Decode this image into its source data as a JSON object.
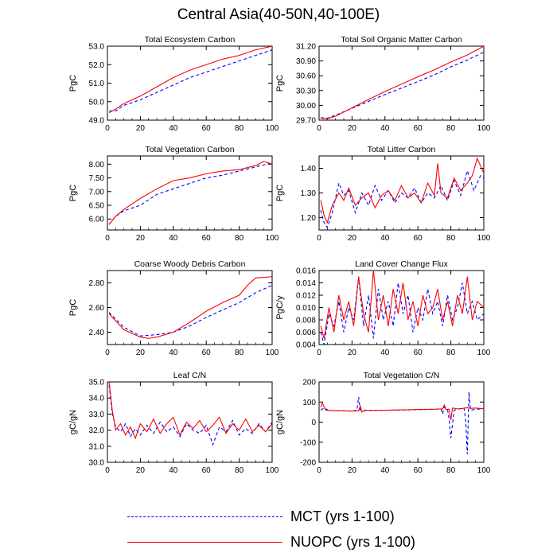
{
  "figure": {
    "title": "Central Asia(40-50N,40-100E)",
    "colors": {
      "mct": "#0000ff",
      "nuopc": "#ff0000"
    }
  },
  "legend": {
    "mct_label": "MCT (yrs 1-100)",
    "nuopc_label": "NUOPC (yrs 1-100)"
  },
  "chart_data": [
    {
      "type": "line",
      "title": "Total Ecosystem Carbon",
      "ylabel": "PgC",
      "xlim": [
        0,
        100
      ],
      "ylim": [
        49.0,
        53.0
      ],
      "xticks": [
        0,
        20,
        40,
        60,
        80,
        100
      ],
      "xtick_labels": [
        "0",
        "20",
        "40",
        "60",
        "80",
        "100"
      ],
      "yticks": [
        49.0,
        50.0,
        51.0,
        52.0,
        53.0
      ],
      "ytick_labels": [
        "49.0",
        "50.0",
        "51.0",
        "52.0",
        "53.0"
      ],
      "series": [
        {
          "name": "MCT (yrs 1-100)",
          "style": "dashed",
          "color": "#0000ff",
          "x": [
            1,
            5,
            10,
            20,
            30,
            40,
            50,
            60,
            70,
            80,
            90,
            100
          ],
          "values": [
            49.5,
            49.5,
            49.8,
            50.1,
            50.5,
            50.9,
            51.3,
            51.6,
            51.9,
            52.2,
            52.5,
            52.8
          ]
        },
        {
          "name": "NUOPC (yrs 1-100)",
          "style": "solid",
          "color": "#ff0000",
          "x": [
            1,
            5,
            10,
            20,
            30,
            40,
            50,
            60,
            70,
            80,
            90,
            100
          ],
          "values": [
            49.4,
            49.6,
            49.9,
            50.3,
            50.8,
            51.3,
            51.7,
            52.0,
            52.3,
            52.5,
            52.8,
            53.0
          ]
        }
      ]
    },
    {
      "type": "line",
      "title": "Total Soil Organic Matter Carbon",
      "ylabel": "PgC",
      "xlim": [
        0,
        100
      ],
      "ylim": [
        29.7,
        31.2
      ],
      "xticks": [
        0,
        20,
        40,
        60,
        80,
        100
      ],
      "xtick_labels": [
        "0",
        "20",
        "40",
        "60",
        "80",
        "100"
      ],
      "yticks": [
        29.7,
        30.0,
        30.3,
        30.6,
        30.9,
        31.2
      ],
      "ytick_labels": [
        "29.70",
        "30.00",
        "30.30",
        "30.60",
        "30.90",
        "31.20"
      ],
      "series": [
        {
          "name": "MCT (yrs 1-100)",
          "style": "dashed",
          "color": "#0000ff",
          "x": [
            1,
            5,
            10,
            20,
            30,
            40,
            50,
            60,
            70,
            80,
            90,
            100
          ],
          "values": [
            29.75,
            29.74,
            29.8,
            29.94,
            30.08,
            30.22,
            30.35,
            30.48,
            30.62,
            30.78,
            30.92,
            31.08
          ]
        },
        {
          "name": "NUOPC (yrs 1-100)",
          "style": "solid",
          "color": "#ff0000",
          "x": [
            1,
            5,
            10,
            20,
            30,
            40,
            50,
            60,
            70,
            80,
            90,
            100
          ],
          "values": [
            29.74,
            29.73,
            29.78,
            29.95,
            30.12,
            30.28,
            30.43,
            30.58,
            30.72,
            30.88,
            31.02,
            31.2
          ]
        }
      ]
    },
    {
      "type": "line",
      "title": "Total Vegetation Carbon",
      "ylabel": "PgC",
      "xlim": [
        0,
        100
      ],
      "ylim": [
        5.6,
        8.3
      ],
      "xticks": [
        0,
        20,
        40,
        60,
        80,
        100
      ],
      "xtick_labels": [
        "0",
        "20",
        "40",
        "60",
        "80",
        "100"
      ],
      "yticks": [
        6.0,
        6.5,
        7.0,
        7.5,
        8.0
      ],
      "ytick_labels": [
        "6.00",
        "6.50",
        "7.00",
        "7.50",
        "8.00"
      ],
      "series": [
        {
          "name": "MCT (yrs 1-100)",
          "style": "dashed",
          "color": "#0000ff",
          "x": [
            1,
            5,
            10,
            20,
            30,
            40,
            50,
            60,
            70,
            80,
            90,
            100
          ],
          "values": [
            5.8,
            6.1,
            6.3,
            6.5,
            6.9,
            7.1,
            7.3,
            7.5,
            7.6,
            7.75,
            7.9,
            8.05
          ]
        },
        {
          "name": "NUOPC (yrs 1-100)",
          "style": "solid",
          "color": "#ff0000",
          "x": [
            1,
            5,
            10,
            20,
            30,
            40,
            50,
            60,
            70,
            80,
            90,
            95,
            100
          ],
          "values": [
            5.8,
            6.1,
            6.35,
            6.75,
            7.1,
            7.4,
            7.5,
            7.65,
            7.75,
            7.8,
            7.95,
            8.1,
            8.0
          ]
        }
      ]
    },
    {
      "type": "line",
      "title": "Total Litter Carbon",
      "ylabel": "PgC",
      "xlim": [
        0,
        100
      ],
      "ylim": [
        1.15,
        1.45
      ],
      "xticks": [
        0,
        20,
        40,
        60,
        80,
        100
      ],
      "xtick_labels": [
        "0",
        "20",
        "40",
        "60",
        "80",
        "100"
      ],
      "yticks": [
        1.2,
        1.3,
        1.4
      ],
      "ytick_labels": [
        "1.20",
        "1.30",
        "1.40"
      ],
      "series": [
        {
          "name": "MCT (yrs 1-100)",
          "style": "dashed",
          "color": "#0000ff",
          "x": [
            1,
            3,
            5,
            8,
            12,
            15,
            18,
            22,
            26,
            30,
            34,
            38,
            42,
            46,
            50,
            54,
            58,
            62,
            66,
            70,
            74,
            78,
            82,
            86,
            90,
            94,
            98,
            100
          ],
          "values": [
            1.23,
            1.18,
            1.16,
            1.22,
            1.34,
            1.29,
            1.31,
            1.22,
            1.3,
            1.25,
            1.33,
            1.27,
            1.31,
            1.26,
            1.3,
            1.28,
            1.32,
            1.26,
            1.3,
            1.28,
            1.33,
            1.27,
            1.35,
            1.29,
            1.39,
            1.31,
            1.37,
            1.36
          ]
        },
        {
          "name": "NUOPC (yrs 1-100)",
          "style": "solid",
          "color": "#ff0000",
          "x": [
            1,
            3,
            5,
            8,
            12,
            15,
            18,
            22,
            26,
            30,
            34,
            38,
            42,
            46,
            50,
            54,
            58,
            62,
            66,
            70,
            72,
            74,
            78,
            82,
            86,
            90,
            93,
            96,
            100
          ],
          "values": [
            1.27,
            1.21,
            1.18,
            1.25,
            1.3,
            1.27,
            1.32,
            1.25,
            1.28,
            1.3,
            1.24,
            1.29,
            1.31,
            1.27,
            1.33,
            1.28,
            1.3,
            1.26,
            1.34,
            1.29,
            1.42,
            1.3,
            1.28,
            1.36,
            1.31,
            1.34,
            1.37,
            1.44,
            1.38
          ]
        }
      ]
    },
    {
      "type": "line",
      "title": "Coarse Woody Debris Carbon",
      "ylabel": "PgC",
      "xlim": [
        0,
        100
      ],
      "ylim": [
        2.3,
        2.9
      ],
      "xticks": [
        0,
        20,
        40,
        60,
        80,
        100
      ],
      "xtick_labels": [
        "0",
        "20",
        "40",
        "60",
        "80",
        "100"
      ],
      "yticks": [
        2.4,
        2.6,
        2.8
      ],
      "ytick_labels": [
        "2.40",
        "2.60",
        "2.80"
      ],
      "series": [
        {
          "name": "MCT (yrs 1-100)",
          "style": "dashed",
          "color": "#0000ff",
          "x": [
            1,
            10,
            20,
            30,
            40,
            50,
            60,
            70,
            80,
            90,
            100
          ],
          "values": [
            2.56,
            2.44,
            2.37,
            2.38,
            2.4,
            2.45,
            2.52,
            2.58,
            2.64,
            2.72,
            2.78
          ]
        },
        {
          "name": "NUOPC (yrs 1-100)",
          "style": "solid",
          "color": "#ff0000",
          "x": [
            1,
            10,
            20,
            25,
            30,
            40,
            50,
            60,
            70,
            80,
            85,
            90,
            100
          ],
          "values": [
            2.55,
            2.42,
            2.36,
            2.35,
            2.36,
            2.4,
            2.48,
            2.57,
            2.64,
            2.7,
            2.78,
            2.84,
            2.85
          ]
        }
      ]
    },
    {
      "type": "line",
      "title": "Land Cover Change Flux",
      "ylabel": "PgC/y",
      "xlim": [
        0,
        100
      ],
      "ylim": [
        0.004,
        0.016
      ],
      "xticks": [
        0,
        20,
        40,
        60,
        80,
        100
      ],
      "xtick_labels": [
        "0",
        "20",
        "40",
        "60",
        "80",
        "100"
      ],
      "yticks": [
        0.004,
        0.006,
        0.008,
        0.01,
        0.012,
        0.014,
        0.016
      ],
      "ytick_labels": [
        "0.004",
        "0.006",
        "0.008",
        "0.010",
        "0.012",
        "0.014",
        "0.016"
      ],
      "series": [
        {
          "name": "MCT (yrs 1-100)",
          "style": "dashed",
          "color": "#0000ff",
          "x": [
            1,
            3,
            6,
            9,
            12,
            15,
            18,
            21,
            24,
            27,
            30,
            33,
            36,
            39,
            42,
            45,
            48,
            51,
            54,
            57,
            60,
            63,
            66,
            69,
            72,
            75,
            78,
            81,
            84,
            87,
            90,
            93,
            96,
            100
          ],
          "values": [
            0.006,
            0.004,
            0.009,
            0.007,
            0.011,
            0.006,
            0.01,
            0.008,
            0.015,
            0.007,
            0.012,
            0.005,
            0.013,
            0.008,
            0.011,
            0.007,
            0.014,
            0.009,
            0.012,
            0.006,
            0.01,
            0.008,
            0.013,
            0.009,
            0.011,
            0.007,
            0.012,
            0.008,
            0.01,
            0.014,
            0.009,
            0.011,
            0.008,
            0.009
          ]
        },
        {
          "name": "NUOPC (yrs 1-100)",
          "style": "solid",
          "color": "#ff0000",
          "x": [
            1,
            3,
            6,
            9,
            12,
            15,
            18,
            21,
            24,
            27,
            30,
            33,
            36,
            39,
            42,
            45,
            48,
            51,
            54,
            57,
            60,
            63,
            66,
            69,
            72,
            75,
            78,
            81,
            84,
            87,
            90,
            93,
            96,
            100
          ],
          "values": [
            0.007,
            0.005,
            0.01,
            0.006,
            0.012,
            0.008,
            0.011,
            0.007,
            0.015,
            0.009,
            0.006,
            0.016,
            0.008,
            0.012,
            0.007,
            0.013,
            0.009,
            0.014,
            0.008,
            0.011,
            0.007,
            0.012,
            0.009,
            0.01,
            0.013,
            0.008,
            0.011,
            0.007,
            0.012,
            0.009,
            0.015,
            0.008,
            0.011,
            0.01
          ]
        }
      ]
    },
    {
      "type": "line",
      "title": "Leaf C/N",
      "ylabel": "gC/gN",
      "xlim": [
        0,
        100
      ],
      "ylim": [
        30.0,
        35.0
      ],
      "xticks": [
        0,
        20,
        40,
        60,
        80,
        100
      ],
      "xtick_labels": [
        "0",
        "20",
        "40",
        "60",
        "80",
        "100"
      ],
      "yticks": [
        30.0,
        31.0,
        32.0,
        33.0,
        34.0,
        35.0
      ],
      "ytick_labels": [
        "30.0",
        "31.0",
        "32.0",
        "33.0",
        "34.0",
        "35.0"
      ],
      "series": [
        {
          "name": "MCT (yrs 1-100)",
          "style": "dashed",
          "color": "#0000ff",
          "x": [
            1,
            3,
            5,
            8,
            11,
            14,
            17,
            20,
            24,
            28,
            32,
            36,
            40,
            44,
            48,
            52,
            56,
            60,
            64,
            68,
            72,
            76,
            80,
            84,
            88,
            92,
            96,
            100
          ],
          "values": [
            34.8,
            33.0,
            32.2,
            31.9,
            32.4,
            31.6,
            32.1,
            31.7,
            32.3,
            31.8,
            32.5,
            31.9,
            32.2,
            31.6,
            32.4,
            32.0,
            31.8,
            32.3,
            31.1,
            32.2,
            31.9,
            32.6,
            31.7,
            32.1,
            31.8,
            32.4,
            31.9,
            32.5
          ]
        },
        {
          "name": "NUOPC (yrs 1-100)",
          "style": "solid",
          "color": "#ff0000",
          "x": [
            1,
            3,
            5,
            8,
            11,
            14,
            17,
            20,
            24,
            28,
            32,
            36,
            40,
            44,
            48,
            52,
            56,
            60,
            64,
            68,
            72,
            76,
            80,
            84,
            88,
            92,
            96,
            100
          ],
          "values": [
            35.0,
            33.2,
            32.0,
            32.4,
            31.7,
            32.2,
            31.5,
            32.4,
            31.9,
            32.7,
            31.8,
            32.4,
            32.8,
            31.7,
            32.5,
            32.1,
            32.6,
            31.9,
            32.3,
            32.8,
            31.8,
            32.4,
            32.0,
            32.7,
            31.9,
            32.3,
            31.9,
            32.4
          ]
        }
      ]
    },
    {
      "type": "line",
      "title": "Total Vegetation C/N",
      "ylabel": "gC/gN",
      "xlim": [
        0,
        100
      ],
      "ylim": [
        -200,
        200
      ],
      "xticks": [
        0,
        20,
        40,
        60,
        80,
        100
      ],
      "xtick_labels": [
        "0",
        "20",
        "40",
        "60",
        "80",
        "100"
      ],
      "yticks": [
        -200,
        -100,
        0,
        100,
        200
      ],
      "ytick_labels": [
        "-200",
        "-100",
        "0",
        "100",
        "200"
      ],
      "series": [
        {
          "name": "MCT (yrs 1-100)",
          "style": "dashed",
          "color": "#0000ff",
          "x": [
            1,
            3,
            6,
            10,
            15,
            20,
            23,
            24,
            25,
            27,
            30,
            40,
            50,
            60,
            70,
            74,
            75,
            76,
            78,
            79,
            80,
            82,
            85,
            88,
            89,
            90,
            91,
            92,
            94,
            96,
            100
          ],
          "values": [
            60,
            70,
            58,
            57,
            56,
            55,
            60,
            125,
            60,
            57,
            58,
            59,
            60,
            62,
            64,
            66,
            40,
            75,
            64,
            10,
            -80,
            60,
            66,
            70,
            10,
            -160,
            150,
            60,
            62,
            64,
            68
          ]
        },
        {
          "name": "NUOPC (yrs 1-100)",
          "style": "solid",
          "color": "#ff0000",
          "x": [
            1,
            2,
            4,
            6,
            10,
            15,
            20,
            24,
            25,
            26,
            28,
            30,
            40,
            50,
            60,
            70,
            75,
            76,
            77,
            79,
            80,
            81,
            85,
            90,
            92,
            95,
            100
          ],
          "values": [
            75,
            95,
            60,
            58,
            57,
            56,
            55,
            56,
            80,
            50,
            60,
            58,
            59,
            61,
            63,
            64,
            66,
            85,
            62,
            65,
            10,
            70,
            65,
            72,
            68,
            70,
            66
          ]
        }
      ]
    }
  ]
}
